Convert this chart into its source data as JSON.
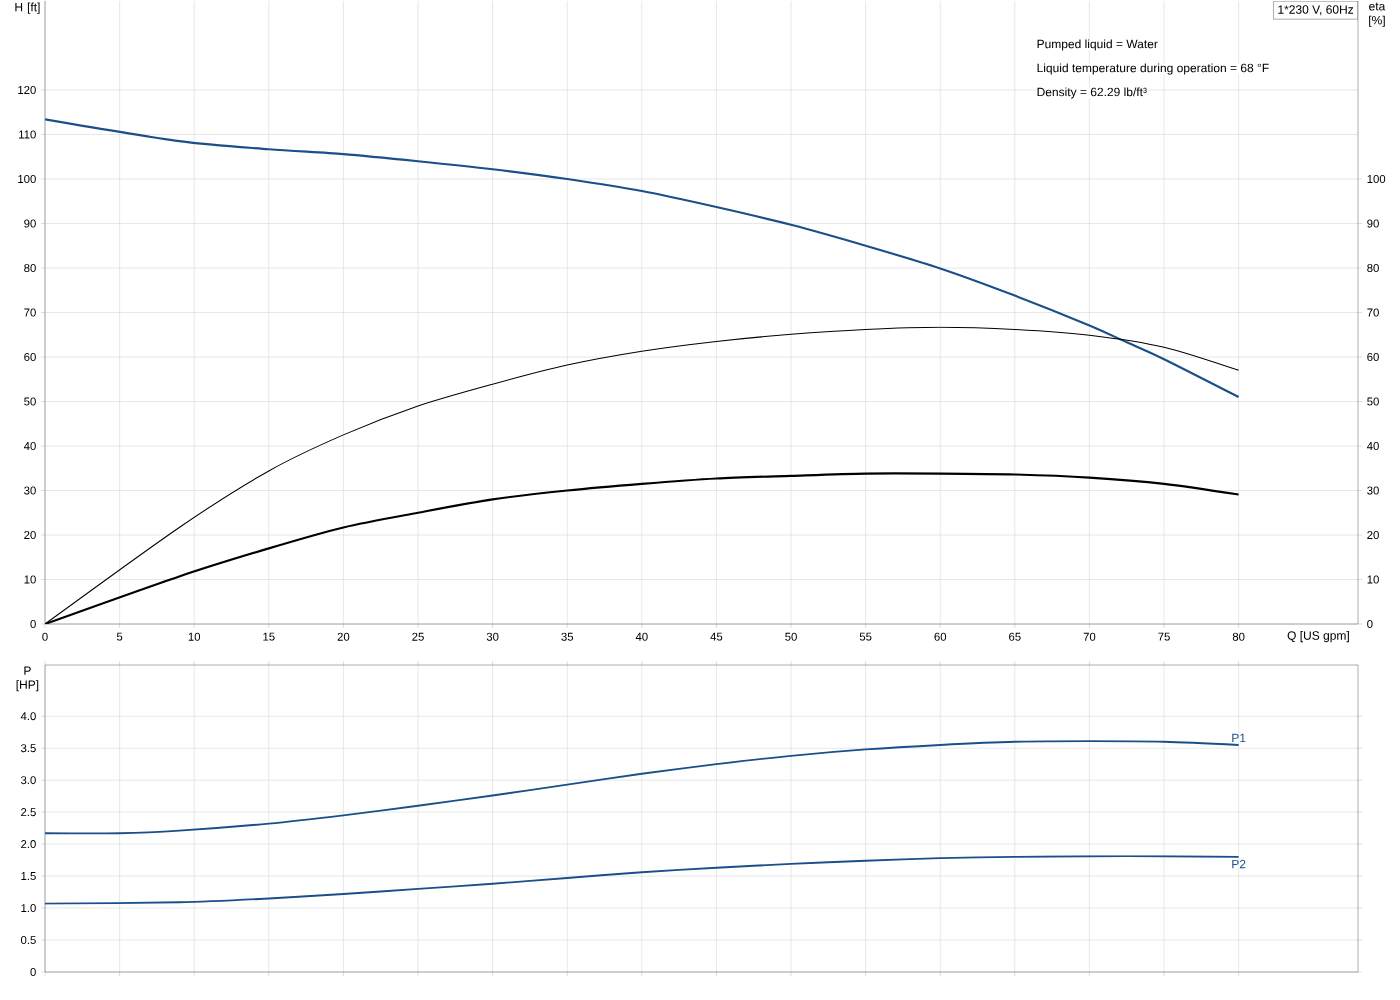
{
  "chart_data": [
    {
      "type": "line",
      "xlabel": "Q [US gpm]",
      "ylabel": "H [ft]",
      "y2label": "eta [%]",
      "annotations": [
        "1*230 V, 60Hz",
        "Pumped liquid = Water",
        "Liquid temperature during operation = 68 °F",
        "Density = 62.29 lb/ft³"
      ],
      "xlim": [
        0,
        88
      ],
      "xticks": [
        0,
        5,
        10,
        15,
        20,
        25,
        30,
        35,
        40,
        45,
        50,
        55,
        60,
        65,
        70,
        75,
        80
      ],
      "ylim": [
        0,
        140
      ],
      "yticks": [
        0,
        10,
        20,
        30,
        40,
        50,
        60,
        70,
        80,
        90,
        100,
        110,
        120
      ],
      "y2lim": [
        0,
        140
      ],
      "y2ticks": [
        0,
        10,
        20,
        30,
        40,
        50,
        60,
        70,
        80,
        90,
        100
      ],
      "grid": true,
      "series": [
        {
          "color": "#1a4f8a",
          "x": [
            0,
            9,
            15,
            20,
            25,
            30,
            35,
            40,
            45,
            50,
            55,
            60,
            65,
            70,
            72.5,
            75,
            80
          ],
          "values": [
            113.4,
            108.5,
            106.7,
            105.6,
            104,
            102.2,
            100,
            97.3,
            93.7,
            89.7,
            85,
            79.9,
            73.8,
            67.1,
            63.3,
            59.5,
            51
          ]
        },
        {
          "color": "#000000",
          "axis": "y2",
          "x": [
            0,
            9,
            15,
            20,
            25,
            30,
            35,
            40,
            45,
            50,
            55,
            60,
            65,
            70,
            75,
            80
          ],
          "values": [
            0,
            21.7,
            34.4,
            42.5,
            49,
            53.9,
            58.2,
            61.3,
            63.5,
            65.1,
            66.2,
            66.7,
            66.2,
            64.9,
            62.2,
            57
          ]
        },
        {
          "color": "#000000",
          "axis": "y2",
          "x": [
            0,
            9,
            15,
            20,
            25,
            30,
            35,
            40,
            45,
            50,
            55,
            60,
            65,
            70,
            75,
            80
          ],
          "values": [
            0,
            10.7,
            17,
            21.7,
            25,
            28,
            30,
            31.5,
            32.7,
            33.3,
            33.8,
            33.8,
            33.6,
            32.9,
            31.5,
            29.1
          ]
        }
      ]
    },
    {
      "type": "line",
      "ylabel": "P [HP]",
      "tick_labels": "y",
      "grid": true,
      "xlim": [
        0,
        88
      ],
      "xticks": [
        0,
        5,
        10,
        15,
        20,
        25,
        30,
        35,
        40,
        45,
        50,
        55,
        60,
        65,
        70,
        75,
        80
      ],
      "ylim": [
        0,
        4.8
      ],
      "yticks": [
        0,
        {
          "value": 0.5,
          "label": "0.5"
        },
        {
          "value": 1,
          "label": "1.0"
        },
        {
          "value": 1.5,
          "label": "1.5"
        },
        {
          "value": 2,
          "label": "2.0"
        },
        {
          "value": 2.5,
          "label": "2.5"
        },
        {
          "value": 3,
          "label": "3.0"
        },
        {
          "value": 3.5,
          "label": "3.5"
        },
        {
          "value": 4,
          "label": "4.0"
        }
      ],
      "series": [
        {
          "name": "P1",
          "color": "#1a4f8a",
          "x": [
            0,
            5,
            9,
            15,
            20,
            25,
            30,
            35,
            40,
            45,
            50,
            55,
            60,
            65,
            70,
            75,
            80
          ],
          "values": [
            2.17,
            2.17,
            2.21,
            2.32,
            2.45,
            2.6,
            2.76,
            2.93,
            3.1,
            3.25,
            3.38,
            3.48,
            3.55,
            3.6,
            3.61,
            3.6,
            3.55
          ]
        },
        {
          "name": "P2",
          "color": "#1a4f8a",
          "x": [
            0,
            9,
            15,
            20,
            25,
            30,
            35,
            40,
            45,
            50,
            55,
            60,
            65,
            70,
            75,
            80
          ],
          "values": [
            1.07,
            1.09,
            1.15,
            1.22,
            1.3,
            1.38,
            1.47,
            1.56,
            1.63,
            1.69,
            1.74,
            1.78,
            1.8,
            1.81,
            1.81,
            1.8
          ]
        }
      ]
    }
  ]
}
